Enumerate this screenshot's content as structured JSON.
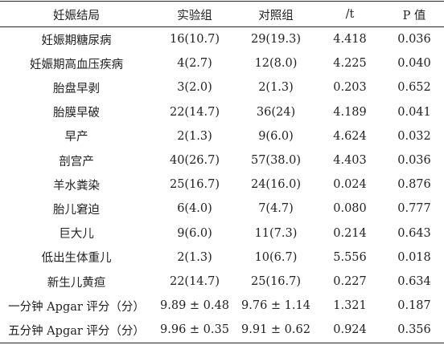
{
  "table": {
    "headers": [
      "妊娠结局",
      "实验组",
      "对照组",
      "/t",
      "P 值"
    ],
    "rows": [
      [
        "妊娠期糖尿病",
        "16(10.7)",
        "29(19.3)",
        "4.418",
        "0.036"
      ],
      [
        "妊娠期高血压疾病",
        "4(2.7)",
        "12(8.0)",
        "4.225",
        "0.040"
      ],
      [
        "胎盘早剥",
        "3(2.0)",
        "2(1.3)",
        "0.203",
        "0.652"
      ],
      [
        "胎膜早破",
        "22(14.7)",
        "36(24)",
        "4.189",
        "0.041"
      ],
      [
        "早产",
        "2(1.3)",
        "9(6.0)",
        "4.624",
        "0.032"
      ],
      [
        "剖宫产",
        "40(26.7)",
        "57(38.0)",
        "4.403",
        "0.036"
      ],
      [
        "羊水粪染",
        "25(16.7)",
        "24(16.0)",
        "0.024",
        "0.876"
      ],
      [
        "胎儿窘迫",
        "6(4.0)",
        "7(4.7)",
        "0.080",
        "0.777"
      ],
      [
        "巨大儿",
        "9(6.0)",
        "11(7.3)",
        "0.214",
        "0.643"
      ],
      [
        "低出生体重儿",
        "2(1.3)",
        "10(6.7)",
        "5.556",
        "0.018"
      ],
      [
        "新生儿黄疸",
        "22(14.7)",
        "25(16.7)",
        "0.227",
        "0.634"
      ],
      [
        "一分钟 Apgar 评分（分）",
        "9.89 ± 0.48",
        "9.76 ± 1.14",
        "1.321",
        "0.187"
      ],
      [
        "五分钟 Apgar 评分（分）",
        "9.96 ± 0.35",
        "9.91 ± 0.62",
        "0.924",
        "0.356"
      ]
    ]
  }
}
